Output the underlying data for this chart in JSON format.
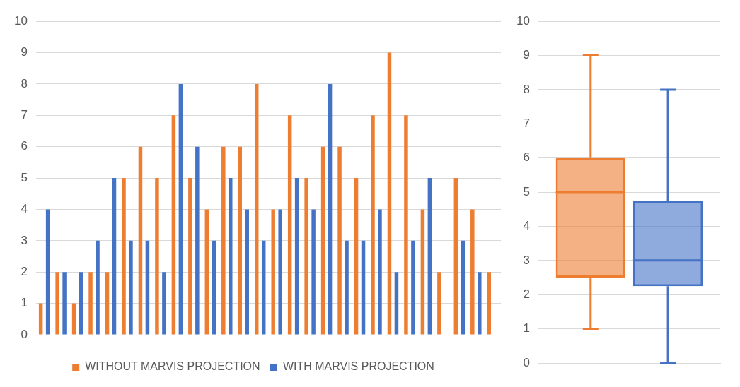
{
  "chart_data": [
    {
      "type": "bar",
      "categories": [
        null,
        null,
        null,
        null,
        null,
        null,
        null,
        null,
        null,
        null,
        null,
        null,
        null,
        null,
        null,
        null,
        null,
        null,
        null,
        null,
        null,
        null,
        null,
        null,
        null,
        null,
        null,
        null
      ],
      "series": [
        {
          "name": "WITHOUT MARVIS PROJECTION",
          "color": "#ed7d31",
          "values": [
            1,
            2,
            1,
            2,
            2,
            5,
            6,
            5,
            7,
            5,
            4,
            6,
            6,
            8,
            4,
            7,
            5,
            6,
            6,
            5,
            7,
            9,
            7,
            4,
            2,
            5,
            4,
            2
          ]
        },
        {
          "name": "WITH MARVIS PROJECTION",
          "color": "#4472c4",
          "values": [
            4,
            2,
            2,
            3,
            5,
            3,
            3,
            2,
            8,
            6,
            3,
            5,
            4,
            3,
            4,
            5,
            4,
            8,
            3,
            3,
            4,
            2,
            3,
            5,
            0,
            3,
            2,
            0
          ]
        }
      ],
      "ylim": [
        0,
        10
      ],
      "yticks": [
        0,
        1,
        2,
        3,
        4,
        5,
        6,
        7,
        8,
        9,
        10
      ],
      "grid": "y",
      "legend": "bottom"
    },
    {
      "type": "box",
      "categories": [
        null
      ],
      "series": [
        {
          "color": "#ed7d31",
          "boxes": [
            {
              "low": 1,
              "q1": 2.5,
              "median": 5,
              "q3": 6,
              "high": 9
            }
          ]
        },
        {
          "color": "#4472c4",
          "boxes": [
            {
              "low": 0,
              "q1": 2.25,
              "median": 3,
              "q3": 4.75,
              "high": 8
            }
          ]
        }
      ],
      "ylim": [
        0,
        10
      ],
      "yticks": [
        0,
        1,
        2,
        3,
        4,
        5,
        6,
        7,
        8,
        9,
        10
      ],
      "grid": "y"
    }
  ]
}
